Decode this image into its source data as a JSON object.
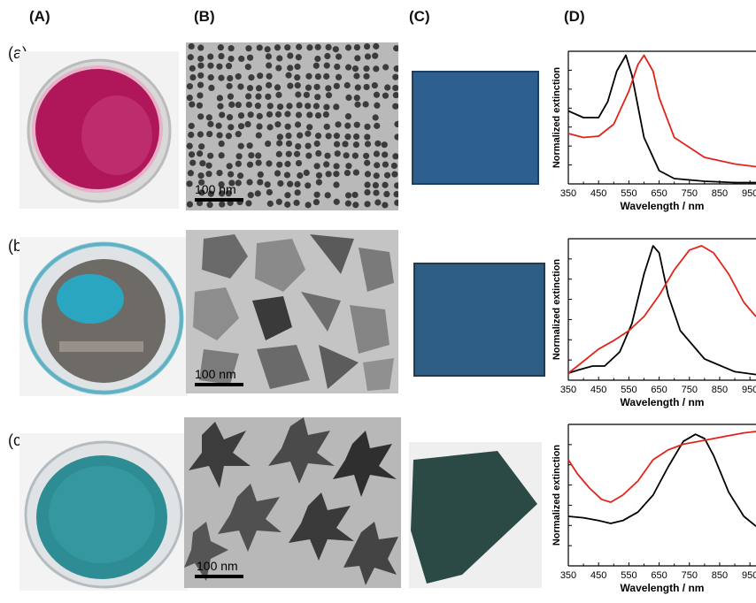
{
  "columns": {
    "A": "(A)",
    "B": "(B)",
    "C": "(C)",
    "D": "(D)"
  },
  "rows": [
    "(a)",
    "(b)",
    "(c)"
  ],
  "scalebar": "100 nm",
  "colors": {
    "beaker_a": "#b0175a",
    "beaker_b": "#2aa6c0",
    "beaker_c": "#2e8c94",
    "film": "#2d5f8f",
    "film_c": "#2b4a45",
    "black_series": "#000000",
    "red_series": "#e2231a"
  },
  "chart_data": [
    {
      "type": "line",
      "xlabel": "Wavelength / nm",
      "ylabel": "Normalized extinction",
      "xticks": [
        350,
        450,
        550,
        650,
        750,
        850,
        950
      ],
      "xlim": [
        350,
        970
      ],
      "ylim": [
        0,
        1
      ],
      "series": [
        {
          "color": "#000000",
          "x": [
            350,
            400,
            450,
            480,
            510,
            540,
            560,
            600,
            650,
            700,
            800,
            900,
            970
          ],
          "y": [
            0.55,
            0.5,
            0.5,
            0.62,
            0.85,
            0.97,
            0.82,
            0.35,
            0.1,
            0.04,
            0.02,
            0.01,
            0.01
          ]
        },
        {
          "color": "#e2231a",
          "x": [
            350,
            400,
            450,
            500,
            550,
            580,
            600,
            630,
            650,
            700,
            800,
            900,
            970
          ],
          "y": [
            0.38,
            0.35,
            0.36,
            0.45,
            0.7,
            0.9,
            0.97,
            0.85,
            0.65,
            0.35,
            0.2,
            0.15,
            0.13
          ]
        }
      ]
    },
    {
      "type": "line",
      "xlabel": "Wavelength / nm",
      "ylabel": "Normalized extinction",
      "xticks": [
        350,
        450,
        550,
        650,
        750,
        850,
        950
      ],
      "xlim": [
        350,
        970
      ],
      "ylim": [
        0,
        1
      ],
      "series": [
        {
          "color": "#000000",
          "x": [
            350,
            380,
            430,
            470,
            520,
            560,
            600,
            630,
            650,
            680,
            720,
            800,
            900,
            970
          ],
          "y": [
            0.05,
            0.07,
            0.1,
            0.1,
            0.2,
            0.4,
            0.75,
            0.95,
            0.9,
            0.6,
            0.35,
            0.15,
            0.06,
            0.04
          ]
        },
        {
          "color": "#e2231a",
          "x": [
            350,
            380,
            450,
            500,
            550,
            600,
            650,
            700,
            750,
            790,
            830,
            880,
            930,
            970
          ],
          "y": [
            0.05,
            0.1,
            0.22,
            0.28,
            0.35,
            0.45,
            0.6,
            0.78,
            0.92,
            0.95,
            0.9,
            0.75,
            0.55,
            0.45
          ]
        }
      ]
    },
    {
      "type": "line",
      "xlabel": "Wavelength / nm",
      "ylabel": "Normalized extinction",
      "xticks": [
        350,
        450,
        550,
        650,
        750,
        850,
        950
      ],
      "xlim": [
        350,
        970
      ],
      "ylim": [
        0,
        1
      ],
      "series": [
        {
          "color": "#000000",
          "x": [
            350,
            400,
            450,
            490,
            530,
            580,
            630,
            680,
            730,
            770,
            800,
            830,
            880,
            930,
            970
          ],
          "y": [
            0.35,
            0.34,
            0.32,
            0.3,
            0.32,
            0.38,
            0.5,
            0.7,
            0.88,
            0.93,
            0.9,
            0.78,
            0.52,
            0.35,
            0.28
          ]
        },
        {
          "color": "#e2231a",
          "x": [
            350,
            380,
            420,
            460,
            490,
            530,
            580,
            630,
            680,
            730,
            780,
            830,
            880,
            930,
            970
          ],
          "y": [
            0.75,
            0.65,
            0.55,
            0.47,
            0.45,
            0.5,
            0.6,
            0.75,
            0.82,
            0.86,
            0.88,
            0.9,
            0.92,
            0.94,
            0.95
          ]
        }
      ]
    }
  ]
}
